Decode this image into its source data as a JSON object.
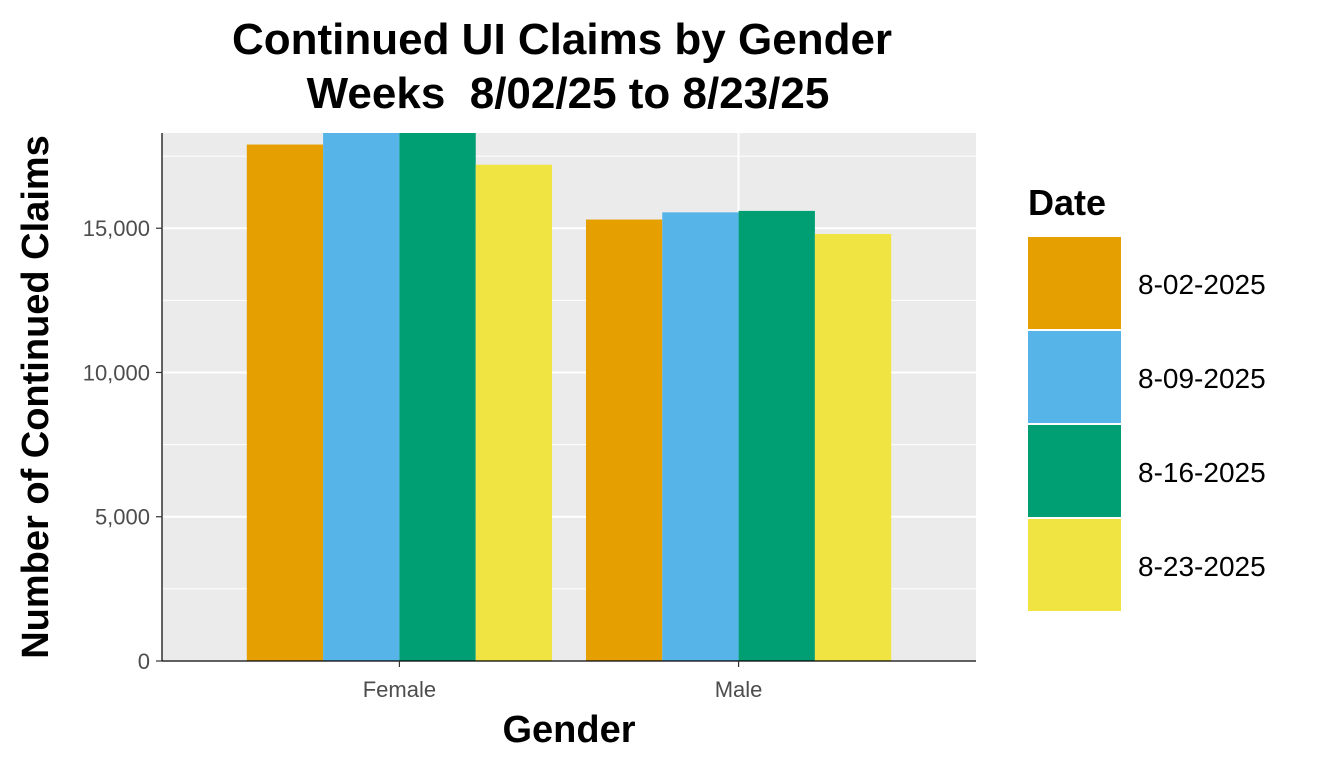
{
  "chart_data": {
    "type": "bar",
    "title": "Continued UI Claims by Gender",
    "subtitle": "Weeks  8/02/25 to 8/23/25",
    "xlabel": "Gender",
    "ylabel": "Number of Continued Claims",
    "categories": [
      "Female",
      "Male"
    ],
    "series": [
      {
        "name": "8-02-2025",
        "color": "#E69F00",
        "values": [
          17900,
          15300
        ]
      },
      {
        "name": "8-09-2025",
        "color": "#56B4E9",
        "values": [
          18400,
          15550
        ]
      },
      {
        "name": "8-16-2025",
        "color": "#009E73",
        "values": [
          18350,
          15600
        ]
      },
      {
        "name": "8-23-2025",
        "color": "#F0E442",
        "values": [
          17200,
          14800
        ]
      }
    ],
    "ylim": [
      0,
      18300
    ],
    "y_ticks": [
      {
        "value": 0,
        "label": "0"
      },
      {
        "value": 5000,
        "label": "5,000"
      },
      {
        "value": 10000,
        "label": "10,000"
      },
      {
        "value": 15000,
        "label": "15,000"
      }
    ],
    "legend": {
      "title": "Date",
      "position": "right"
    },
    "grid": true,
    "panel_color": "#EBEBEB"
  }
}
